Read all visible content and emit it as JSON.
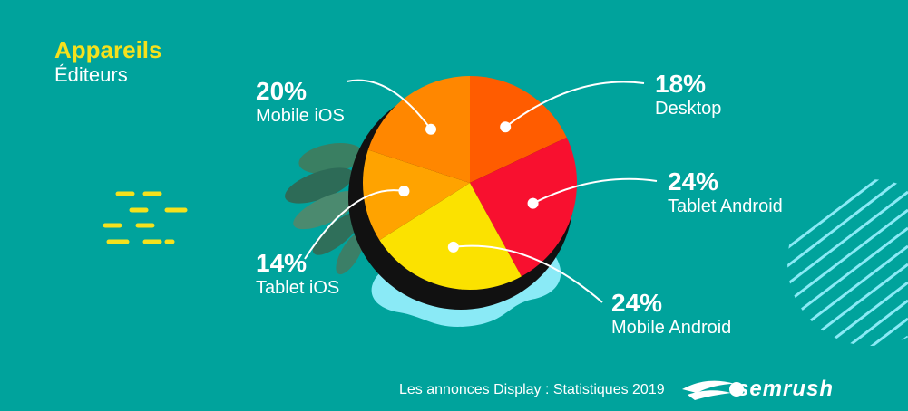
{
  "header": {
    "title": "Appareils",
    "subtitle": "Éditeurs"
  },
  "chart_data": {
    "type": "pie",
    "categories": [
      "Desktop",
      "Tablet Android",
      "Mobile Android",
      "Tablet iOS",
      "Mobile iOS"
    ],
    "values": [
      18,
      24,
      24,
      14,
      20
    ],
    "labels": [
      "18%",
      "24%",
      "24%",
      "14%",
      "20%"
    ],
    "colors": [
      "#ff5c00",
      "#f8102f",
      "#fbe200",
      "#ffa300",
      "#ff8700"
    ],
    "legend": "none"
  },
  "footer": {
    "caption": "Les annonces Display : Statistiques 2019",
    "brand": "semrush"
  },
  "colors": {
    "background": "#00a39c",
    "title_accent": "#f5e11c",
    "blob": "#8aeaf6",
    "leaves": "#3a7f62"
  }
}
